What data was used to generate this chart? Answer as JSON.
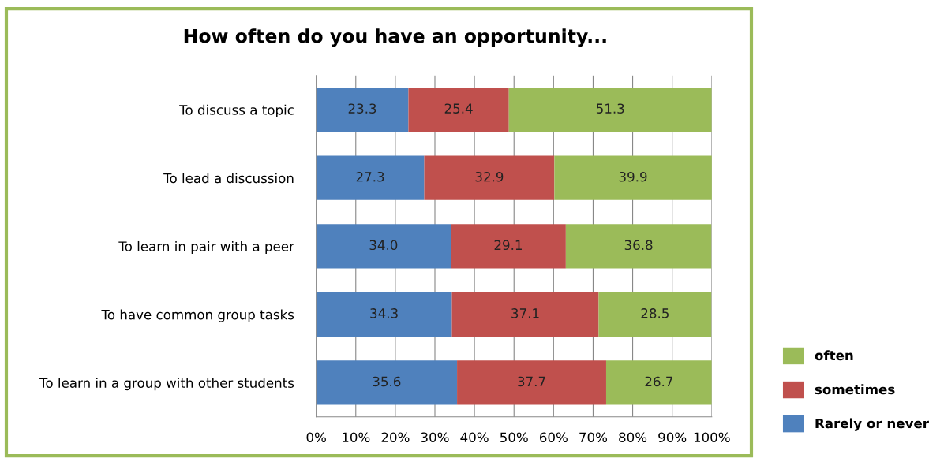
{
  "chart_data": {
    "type": "bar",
    "orientation": "horizontal",
    "stacked": true,
    "title": "How often do you have an opportunity...",
    "categories": [
      "To discuss a topic",
      "To lead a discussion",
      "To learn in pair with a peer",
      "To have common group tasks",
      "To learn in a group with other students"
    ],
    "series": [
      {
        "name": "Rarely or never",
        "color": "#4f81bd",
        "values": [
          23.3,
          27.3,
          34.0,
          34.3,
          35.6
        ],
        "value_labels": [
          "23.3",
          "27.3",
          "34.0",
          "34.3",
          "35.6"
        ]
      },
      {
        "name": "sometimes",
        "color": "#c0504d",
        "values": [
          25.4,
          32.9,
          29.1,
          37.1,
          37.7
        ],
        "value_labels": [
          "25.4",
          "32.9",
          "29.1",
          "37.1",
          "37.7"
        ]
      },
      {
        "name": "often",
        "color": "#9bbb59",
        "values": [
          51.3,
          39.9,
          36.8,
          28.5,
          26.7
        ],
        "value_labels": [
          "51.3",
          "39.9",
          "36.8",
          "28.5",
          "26.7"
        ]
      }
    ],
    "xlim": [
      0,
      100
    ],
    "xticks": [
      {
        "value": 0,
        "label": "0%"
      },
      {
        "value": 10,
        "label": "10%"
      },
      {
        "value": 20,
        "label": "20%"
      },
      {
        "value": 30,
        "label": "30%"
      },
      {
        "value": 40,
        "label": "40%"
      },
      {
        "value": 50,
        "label": "50%"
      },
      {
        "value": 60,
        "label": "60%"
      },
      {
        "value": 70,
        "label": "70%"
      },
      {
        "value": 80,
        "label": "80%"
      },
      {
        "value": 90,
        "label": "90%"
      },
      {
        "value": 100,
        "label": "100%"
      }
    ],
    "grid": "x",
    "legend": "right"
  }
}
